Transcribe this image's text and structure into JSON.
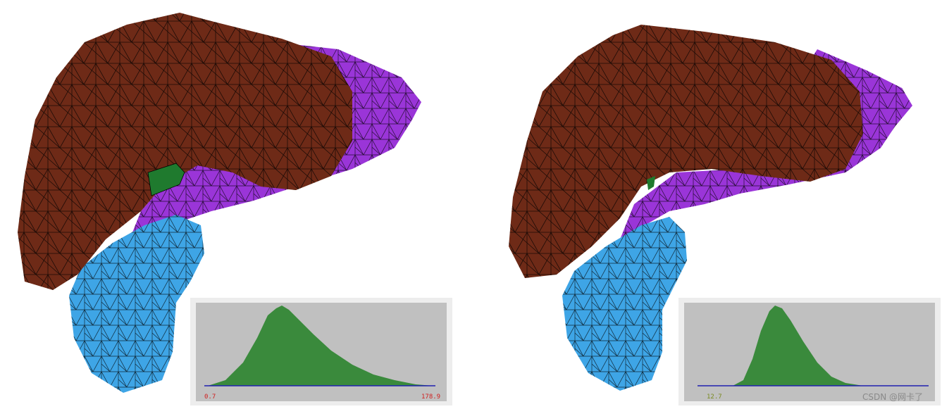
{
  "panels": [
    {
      "histogram": {
        "min_label": "0.7",
        "max_label": "178.9"
      }
    },
    {
      "histogram": {
        "min_label": "12.7"
      }
    }
  ],
  "watermark": "CSDN @网卡了"
}
